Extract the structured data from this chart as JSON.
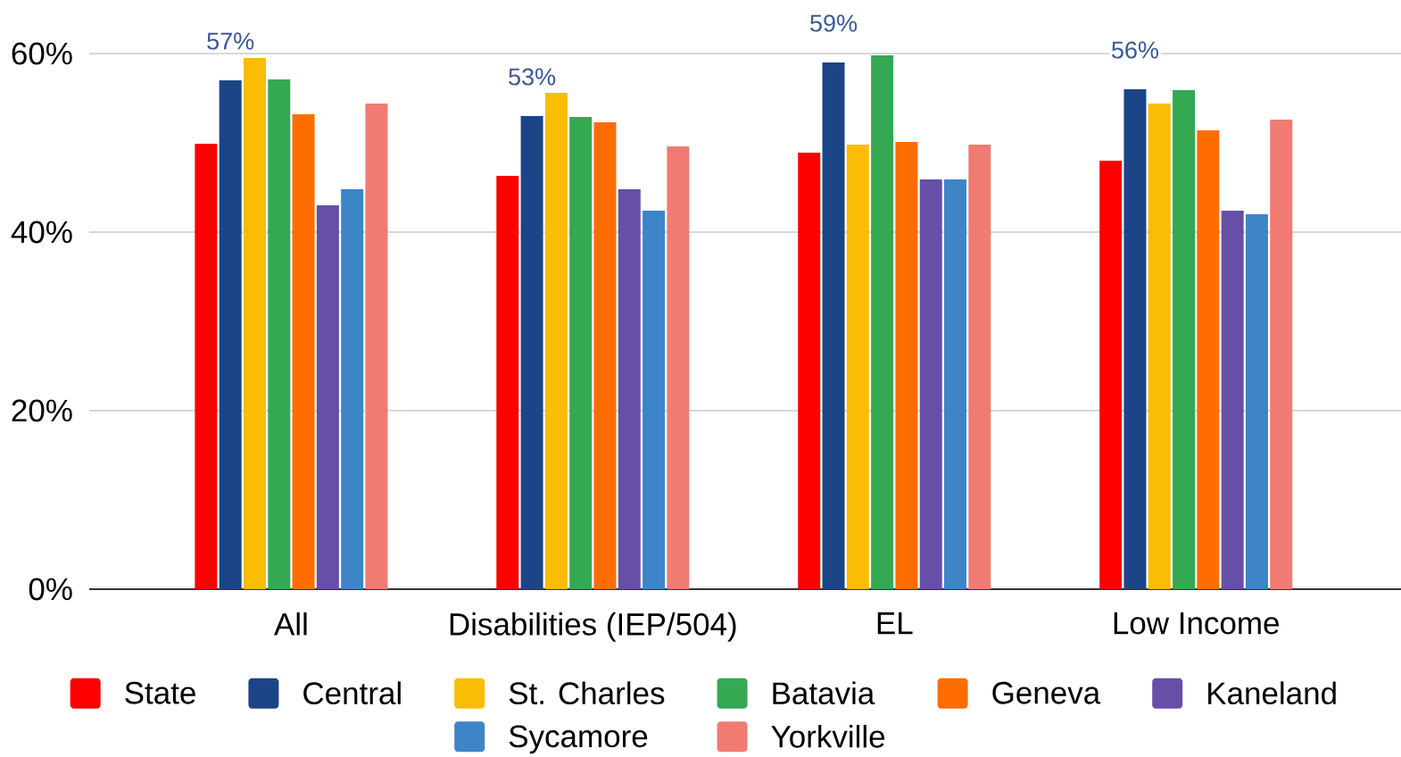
{
  "chart_data": {
    "type": "bar",
    "categories": [
      "All",
      "Disabilities (IEP/504)",
      "EL",
      "Low Income"
    ],
    "series": [
      {
        "name": "State",
        "color": "#ff0000",
        "values": [
          49.9,
          46.3,
          48.9,
          48.0
        ]
      },
      {
        "name": "Central",
        "color": "#1c4587",
        "values": [
          57,
          53,
          59,
          56
        ],
        "value_labels": [
          "57%",
          "53%",
          "59%",
          "56%"
        ]
      },
      {
        "name": "St. Charles",
        "color": "#fbbc04",
        "values": [
          59.5,
          55.6,
          49.8,
          54.4
        ]
      },
      {
        "name": "Batavia",
        "color": "#34a853",
        "values": [
          57.1,
          52.9,
          59.8,
          55.9
        ]
      },
      {
        "name": "Geneva",
        "color": "#ff6d01",
        "values": [
          53.2,
          52.3,
          50.1,
          51.4
        ]
      },
      {
        "name": "Kaneland",
        "color": "#674ea7",
        "values": [
          43.0,
          44.8,
          45.9,
          42.4
        ]
      },
      {
        "name": "Sycamore",
        "color": "#3d85c6",
        "values": [
          44.8,
          42.4,
          45.9,
          42.0
        ]
      },
      {
        "name": "Yorkville",
        "color": "#f07b72",
        "values": [
          54.4,
          49.6,
          49.8,
          52.6
        ]
      }
    ],
    "ylim": [
      0,
      60
    ],
    "yticks": [
      {
        "value": 0,
        "label": "0%"
      },
      {
        "value": 20,
        "label": "20%"
      },
      {
        "value": 40,
        "label": "40%"
      },
      {
        "value": 60,
        "label": "60%"
      }
    ],
    "grid": "y",
    "legend": "bottom"
  }
}
